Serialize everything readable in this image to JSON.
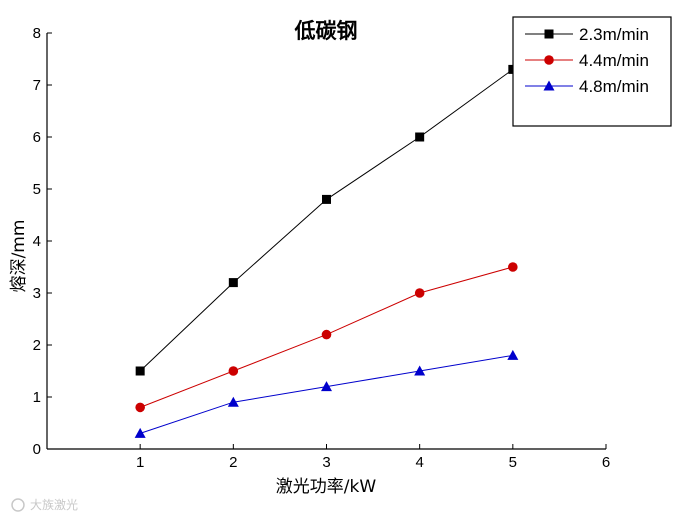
{
  "chart_data": {
    "type": "line",
    "title": "低碳钢",
    "xlabel": "激光功率/kW",
    "ylabel": "熔深/mm",
    "xlim": [
      0,
      6
    ],
    "ylim": [
      0,
      8
    ],
    "xticks": [
      0,
      1,
      2,
      3,
      4,
      5,
      6
    ],
    "yticks": [
      0,
      1,
      2,
      3,
      4,
      5,
      6,
      7,
      8
    ],
    "x": [
      1,
      2,
      3,
      4,
      5
    ],
    "grid": false,
    "legend_position": "top-right",
    "series": [
      {
        "name": "2.3m/min",
        "values": [
          1.5,
          3.2,
          4.8,
          6.0,
          7.3
        ],
        "color": "#000000",
        "marker": "square"
      },
      {
        "name": "4.4m/min",
        "values": [
          0.8,
          1.5,
          2.2,
          3.0,
          3.5
        ],
        "color": "#cc0000",
        "marker": "circle"
      },
      {
        "name": "4.8m/min",
        "values": [
          0.3,
          0.9,
          1.2,
          1.5,
          1.8
        ],
        "color": "#0000cc",
        "marker": "triangle"
      }
    ]
  },
  "watermark": {
    "text": "大族激光"
  }
}
